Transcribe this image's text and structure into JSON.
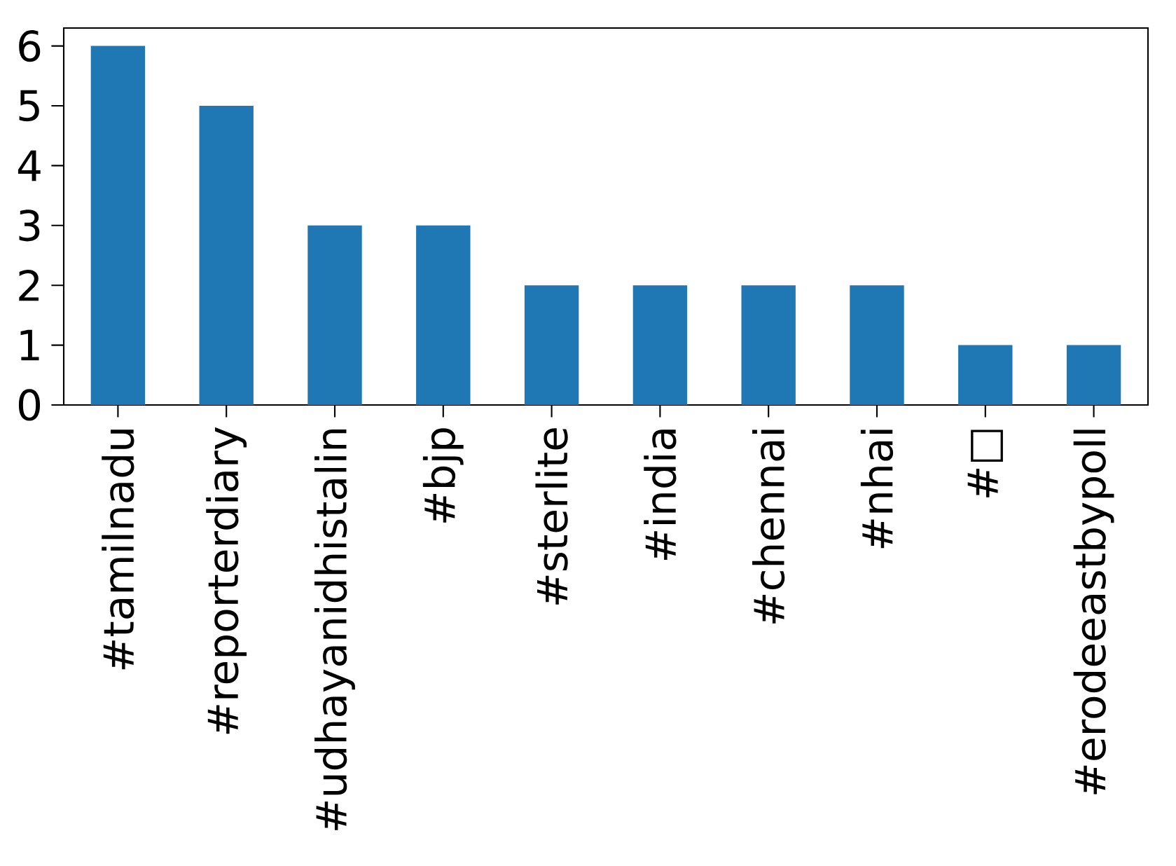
{
  "chart_data": {
    "type": "bar",
    "categories": [
      "#tamilnadu",
      "#reporterdiary",
      "#udhayanidhistalin",
      "#bjp",
      "#sterlite",
      "#india",
      "#chennai",
      "#nhai",
      "#□",
      "#erodeeastbypoll"
    ],
    "values": [
      6,
      5,
      3,
      3,
      2,
      2,
      2,
      2,
      1,
      1
    ],
    "color": "#1f77b4",
    "ylim": [
      0,
      6.3
    ],
    "yticks": [
      0,
      1,
      2,
      3,
      4,
      5,
      6
    ]
  }
}
